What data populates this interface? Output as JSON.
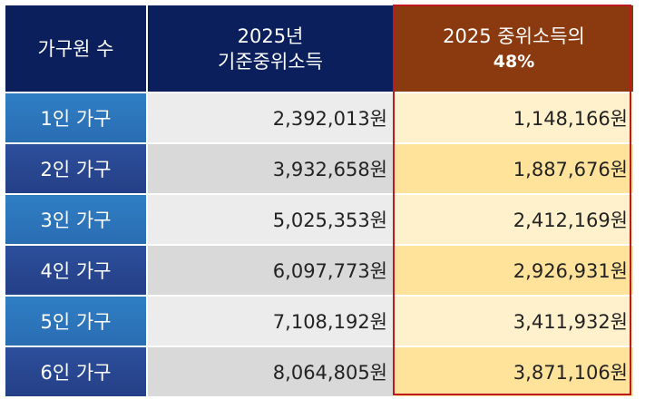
{
  "header": {
    "col1": "가구원 수",
    "col2_line1": "2025년",
    "col2_line2": "기준중위소득",
    "col3_line1": "2025 중위소득의",
    "col3_line2": "48%"
  },
  "rows": [
    {
      "household": "1인 가구",
      "median": "2,392,013원",
      "pct48": "1,148,166원"
    },
    {
      "household": "2인 가구",
      "median": "3,932,658원",
      "pct48": "1,887,676원"
    },
    {
      "household": "3인 가구",
      "median": "5,025,353원",
      "pct48": "2,412,169원"
    },
    {
      "household": "4인 가구",
      "median": "6,097,773원",
      "pct48": "2,926,931원"
    },
    {
      "household": "5인 가구",
      "median": "7,108,192원",
      "pct48": "3,411,932원"
    },
    {
      "household": "6인 가구",
      "median": "8,064,805원",
      "pct48": "3,871,106원"
    }
  ],
  "colors": {
    "header_navy": "#0a1f5c",
    "header_brown": "#8b3a0f",
    "highlight_border": "#c0191b"
  }
}
